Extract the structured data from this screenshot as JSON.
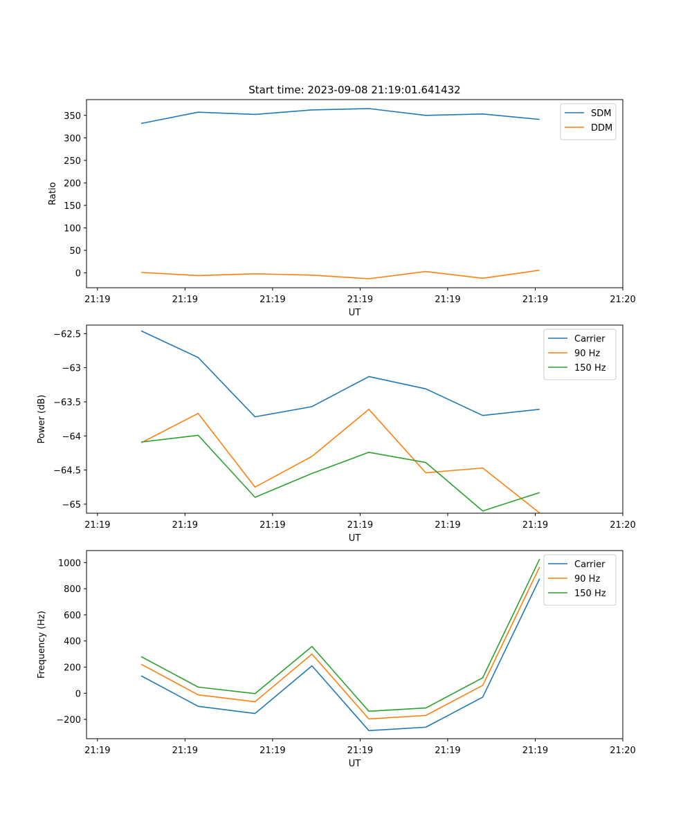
{
  "figure_title": "Start time: 2023-09-08 21:19:01.641432",
  "colors": {
    "blue": "#1f77b4",
    "orange": "#ff7f0e",
    "green": "#2ca02c"
  },
  "chart_data": [
    {
      "type": "line",
      "title": "Start time: 2023-09-08 21:19:01.641432",
      "xlabel": "UT",
      "ylabel": "Ratio",
      "x_tick_labels": [
        "21:19",
        "21:19",
        "21:19",
        "21:19",
        "21:19",
        "21:19",
        "21:20"
      ],
      "xlim": [
        -0.125,
        6.0
      ],
      "ylim": [
        -33,
        385
      ],
      "y_ticks": [
        0,
        50,
        100,
        150,
        200,
        250,
        300,
        350
      ],
      "legend_loc": "upper right",
      "x": [
        0.5,
        1.15,
        1.8,
        2.45,
        3.1,
        3.75,
        4.4,
        5.05
      ],
      "series": [
        {
          "name": "SDM",
          "color": "#1f77b4",
          "values": [
            332,
            357,
            352,
            362,
            365,
            350,
            353,
            341
          ]
        },
        {
          "name": "DDM",
          "color": "#ff7f0e",
          "values": [
            1,
            -6,
            -2,
            -5,
            -13,
            3,
            -12,
            6
          ]
        }
      ]
    },
    {
      "type": "line",
      "xlabel": "UT",
      "ylabel": "Power (dB)",
      "x_tick_labels": [
        "21:19",
        "21:19",
        "21:19",
        "21:19",
        "21:19",
        "21:19",
        "21:20"
      ],
      "xlim": [
        -0.125,
        6.0
      ],
      "ylim": [
        -65.133,
        -62.375
      ],
      "y_ticks": [
        -65.0,
        -64.5,
        -64.0,
        -63.5,
        -63.0,
        -62.5
      ],
      "legend_loc": "upper right",
      "x": [
        0.5,
        1.15,
        1.8,
        2.45,
        3.1,
        3.75,
        4.4,
        5.05
      ],
      "series": [
        {
          "name": "Carrier",
          "color": "#1f77b4",
          "values": [
            -62.46,
            -62.85,
            -63.72,
            -63.57,
            -63.13,
            -63.31,
            -63.7,
            -63.61
          ]
        },
        {
          "name": "90 Hz",
          "color": "#ff7f0e",
          "values": [
            -64.1,
            -63.67,
            -64.75,
            -64.3,
            -63.61,
            -64.54,
            -64.47,
            -65.13
          ]
        },
        {
          "name": "150 Hz",
          "color": "#2ca02c",
          "values": [
            -64.09,
            -63.99,
            -64.9,
            -64.55,
            -64.24,
            -64.39,
            -65.1,
            -64.83
          ]
        }
      ]
    },
    {
      "type": "line",
      "xlabel": "UT",
      "ylabel": "Frequency (Hz)",
      "x_tick_labels": [
        "21:19",
        "21:19",
        "21:19",
        "21:19",
        "21:19",
        "21:19",
        "21:20"
      ],
      "xlim": [
        -0.125,
        6.0
      ],
      "ylim": [
        -348,
        1092
      ],
      "y_ticks": [
        -200,
        0,
        200,
        400,
        600,
        800,
        1000
      ],
      "legend_loc": "upper right",
      "x": [
        0.5,
        1.15,
        1.8,
        2.45,
        3.1,
        3.75,
        4.4,
        5.05
      ],
      "series": [
        {
          "name": "Carrier",
          "color": "#1f77b4",
          "values": [
            133,
            -100,
            -155,
            210,
            -286,
            -260,
            -30,
            877
          ]
        },
        {
          "name": "90 Hz",
          "color": "#ff7f0e",
          "values": [
            222,
            -12,
            -65,
            300,
            -197,
            -170,
            60,
            967
          ]
        },
        {
          "name": "150 Hz",
          "color": "#2ca02c",
          "values": [
            280,
            47,
            -3,
            358,
            -138,
            -113,
            118,
            1027
          ]
        }
      ]
    }
  ]
}
